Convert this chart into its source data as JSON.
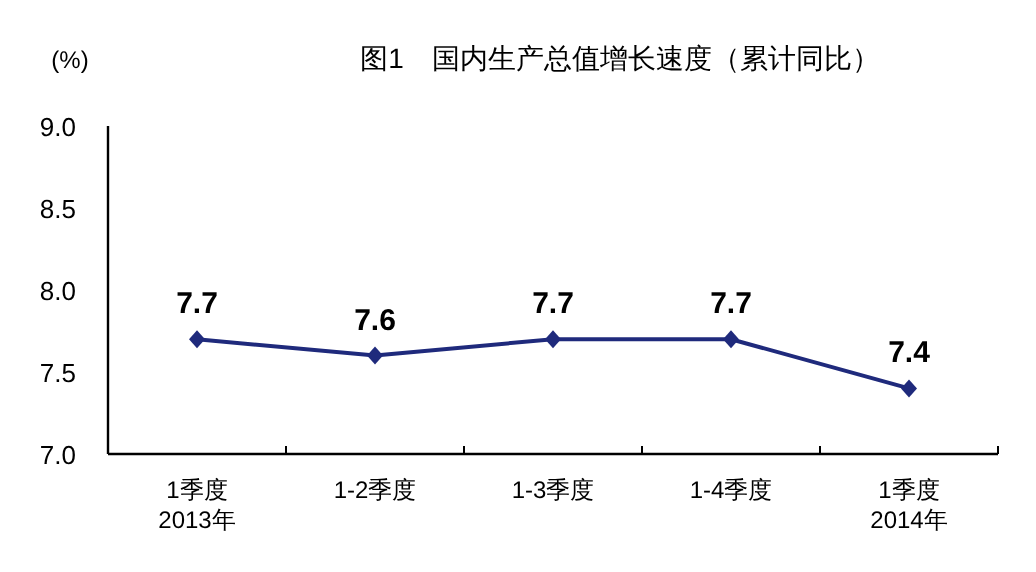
{
  "chart_data": {
    "type": "line",
    "title": "图1　国内生产总值增长速度（累计同比）",
    "ylabel": "(%)",
    "categories": [
      "1季度\n2013年",
      "1-2季度",
      "1-3季度",
      "1-4季度",
      "1季度\n2014年"
    ],
    "series": [
      {
        "color": "#1f2a7c",
        "values": [
          7.7,
          7.6,
          7.7,
          7.7,
          7.4
        ]
      }
    ],
    "ylim": [
      7.0,
      9.0
    ],
    "yticks": [
      {
        "value": 7.0,
        "label": "7.0"
      },
      7.5,
      {
        "value": 8.0,
        "label": "8.0"
      },
      8.5,
      {
        "value": 9.0,
        "label": "9.0"
      }
    ],
    "data_labels": true,
    "marker": "diamond",
    "line_style": "solid",
    "grid": false
  }
}
